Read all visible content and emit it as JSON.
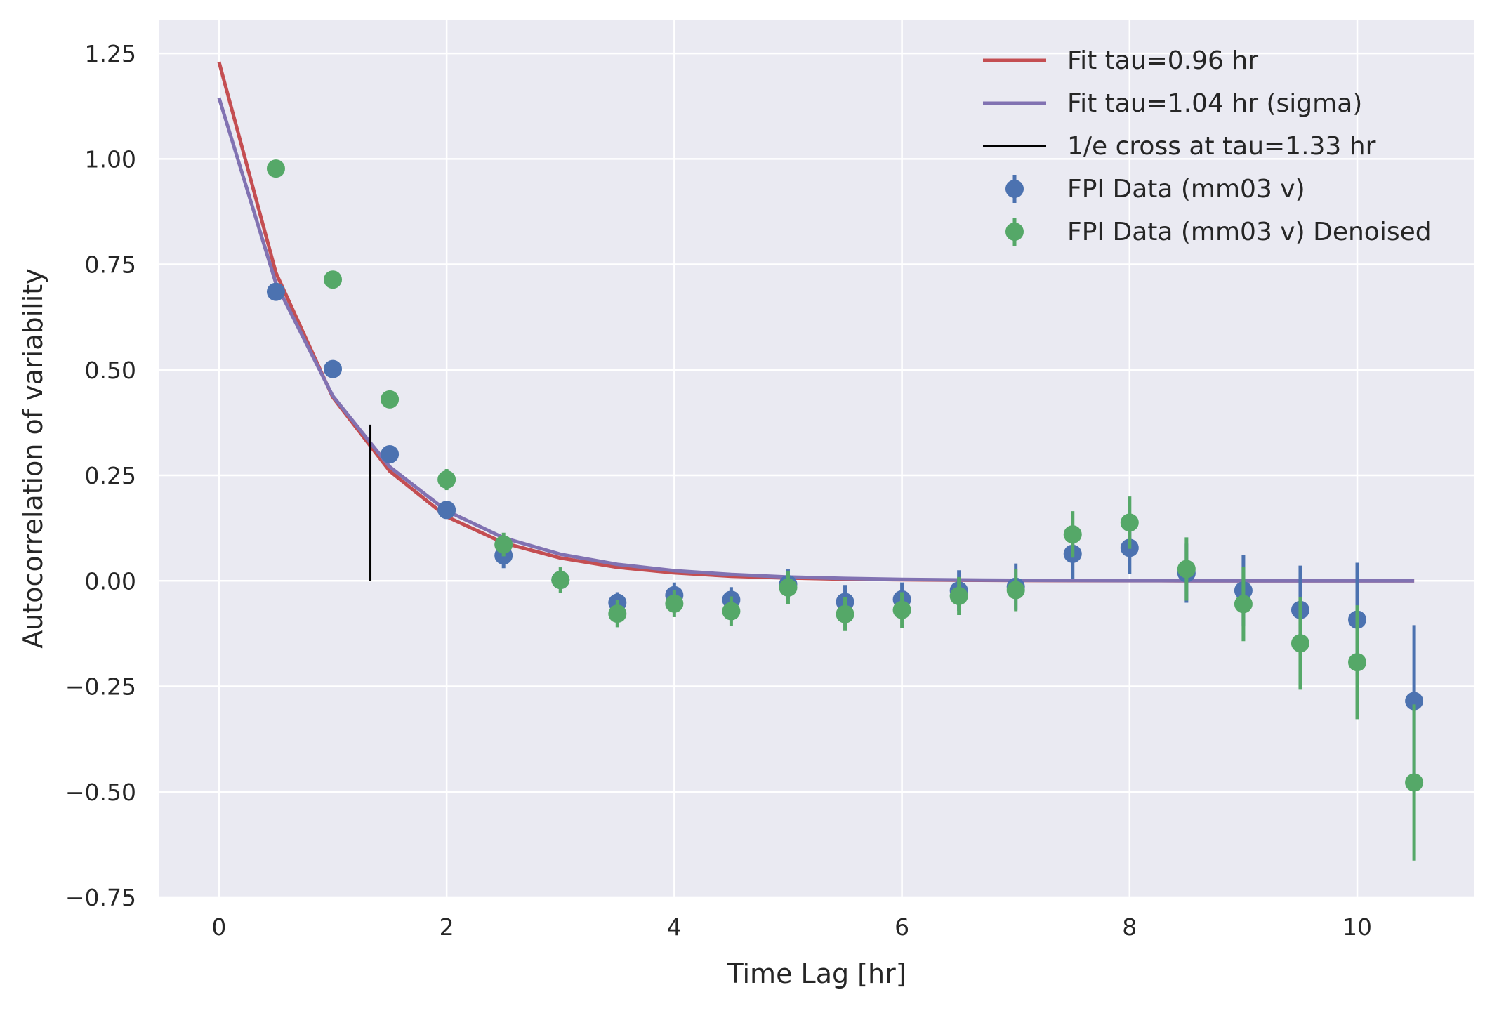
{
  "chart_data": {
    "type": "scatter",
    "xlabel": "Time Lag [hr]",
    "ylabel": "Autocorrelation of variability",
    "xlim": [
      -0.53,
      11.03
    ],
    "ylim": [
      -0.75,
      1.33
    ],
    "xticks": [
      0,
      2,
      4,
      6,
      8,
      10
    ],
    "xtick_labels": [
      "0",
      "2",
      "4",
      "6",
      "8",
      "10"
    ],
    "yticks": [
      -0.75,
      -0.5,
      -0.25,
      0.0,
      0.25,
      0.5,
      0.75,
      1.0,
      1.25
    ],
    "ytick_labels": [
      "−0.75",
      "−0.50",
      "−0.25",
      "0.00",
      "0.25",
      "0.50",
      "0.75",
      "1.00",
      "1.25"
    ],
    "grid": true,
    "background": "#EAEAF2",
    "legend_position": "top-right",
    "lines": [
      {
        "name": "Fit tau=0.96 hr",
        "color": "#C44E52",
        "x": [
          0,
          0.5,
          1.0,
          1.5,
          2.0,
          2.5,
          3.0,
          3.5,
          4.0,
          4.5,
          5.0,
          5.5,
          6.0,
          6.5,
          7.0,
          7.5,
          8.0,
          8.5,
          9.0,
          9.5,
          10.0,
          10.5
        ],
        "y": [
          1.23,
          0.73,
          0.435,
          0.26,
          0.152,
          0.09,
          0.054,
          0.032,
          0.019,
          0.011,
          0.0068,
          0.004,
          0.0024,
          0.0014,
          0.0008,
          0.0005,
          0.0003,
          0.0002,
          0.0001,
          0.0001,
          0.0,
          0.0
        ]
      },
      {
        "name": "Fit tau=1.04 hr (sigma)",
        "color": "#8172B2",
        "x": [
          0,
          0.5,
          1.0,
          1.5,
          2.0,
          2.5,
          3.0,
          3.5,
          4.0,
          4.5,
          5.0,
          5.5,
          6.0,
          6.5,
          7.0,
          7.5,
          8.0,
          8.5,
          9.0,
          9.5,
          10.0,
          10.5
        ],
        "y": [
          1.145,
          0.705,
          0.438,
          0.27,
          0.166,
          0.102,
          0.063,
          0.039,
          0.024,
          0.015,
          0.009,
          0.0056,
          0.0034,
          0.0021,
          0.0013,
          0.0008,
          0.0005,
          0.0003,
          0.0002,
          0.0001,
          0.0001,
          0.0
        ]
      }
    ],
    "vline": {
      "name": "1/e cross at tau=1.33 hr",
      "color": "#000000",
      "x": 1.33,
      "y0": 0.0,
      "y1": 0.37
    },
    "series": [
      {
        "name": "FPI Data (mm03 v)",
        "color": "#4C72B0",
        "x": [
          0.5,
          1.0,
          1.5,
          2.0,
          2.5,
          3.0,
          3.5,
          4.0,
          4.5,
          5.0,
          5.5,
          6.0,
          6.5,
          7.0,
          7.5,
          8.0,
          8.5,
          9.0,
          9.5,
          10.0,
          10.5
        ],
        "y": [
          0.685,
          0.502,
          0.3,
          0.168,
          0.06,
          0.002,
          -0.052,
          -0.034,
          -0.045,
          -0.008,
          -0.05,
          -0.044,
          -0.023,
          -0.014,
          0.064,
          0.078,
          0.018,
          -0.023,
          -0.069,
          -0.092,
          -0.285
        ],
        "yerr": [
          0.008,
          0.01,
          0.012,
          0.02,
          0.03,
          0.02,
          0.025,
          0.03,
          0.03,
          0.035,
          0.04,
          0.04,
          0.048,
          0.055,
          0.06,
          0.062,
          0.07,
          0.085,
          0.105,
          0.135,
          0.18
        ]
      },
      {
        "name": "FPI Data (mm03 v) Denoised",
        "color": "#55A868",
        "x": [
          0.5,
          1.0,
          1.5,
          2.0,
          2.5,
          3.0,
          3.5,
          4.0,
          4.5,
          5.0,
          5.5,
          6.0,
          6.5,
          7.0,
          7.5,
          8.0,
          8.5,
          9.0,
          9.5,
          10.0,
          10.5
        ],
        "y": [
          0.977,
          0.714,
          0.43,
          0.24,
          0.086,
          0.002,
          -0.078,
          -0.054,
          -0.072,
          -0.016,
          -0.079,
          -0.069,
          -0.036,
          -0.022,
          0.11,
          0.138,
          0.028,
          -0.055,
          -0.148,
          -0.193,
          -0.478
        ],
        "yerr": [
          0.008,
          0.01,
          0.015,
          0.025,
          0.028,
          0.03,
          0.032,
          0.032,
          0.035,
          0.04,
          0.04,
          0.042,
          0.045,
          0.05,
          0.055,
          0.062,
          0.075,
          0.088,
          0.11,
          0.135,
          0.185
        ]
      }
    ]
  }
}
